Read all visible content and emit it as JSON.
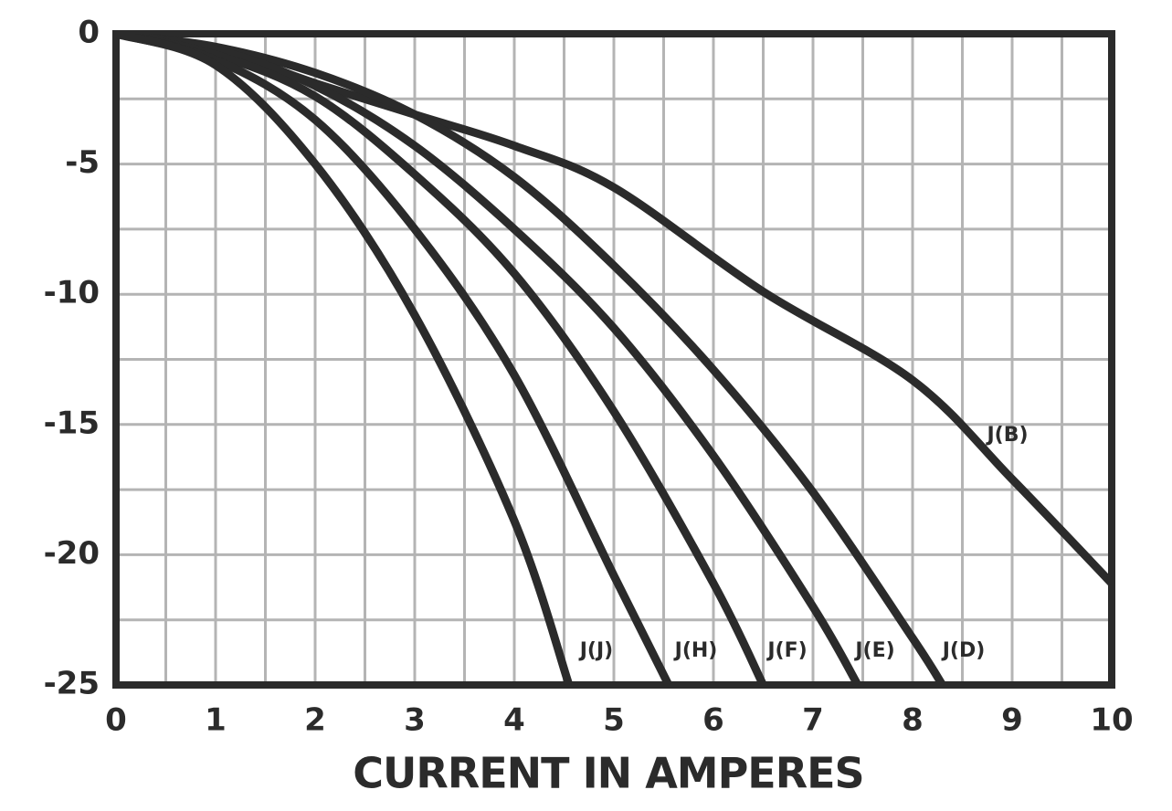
{
  "chart_data": {
    "type": "line",
    "xlabel": "CURRENT IN AMPERES",
    "xlim": [
      0,
      10
    ],
    "xticks": [
      0,
      1,
      2,
      3,
      4,
      5,
      6,
      7,
      8,
      9,
      10
    ],
    "ylim": [
      -25,
      0
    ],
    "yticks": [
      0,
      -5,
      -10,
      -15,
      -20,
      -25
    ],
    "grid": true,
    "series": [
      {
        "name": "J(B)",
        "color": "#2b2b2b",
        "x": [
          0,
          1,
          2,
          3,
          4,
          5,
          6.5,
          8,
          9,
          10
        ],
        "values": [
          0,
          -0.6,
          -1.9,
          -3.1,
          -4.3,
          -5.9,
          -9.9,
          -13.3,
          -17.1,
          -21.1
        ]
      },
      {
        "name": "J(D)",
        "color": "#2b2b2b",
        "x": [
          0,
          1,
          2,
          3,
          4,
          5,
          6,
          7,
          8,
          8.3
        ],
        "values": [
          0,
          -0.5,
          -1.5,
          -3.1,
          -5.5,
          -8.9,
          -12.9,
          -17.6,
          -23.2,
          -25
        ]
      },
      {
        "name": "J(E)",
        "color": "#2b2b2b",
        "x": [
          0,
          1,
          2,
          3,
          4,
          5,
          6,
          7,
          7.45
        ],
        "values": [
          0,
          -0.6,
          -2.0,
          -4.3,
          -7.5,
          -11.3,
          -16.2,
          -22.0,
          -25
        ]
      },
      {
        "name": "J(F)",
        "color": "#2b2b2b",
        "x": [
          0,
          1,
          2,
          3,
          4,
          5,
          6,
          6.5
        ],
        "values": [
          0,
          -0.8,
          -2.4,
          -5.4,
          -9.2,
          -14.5,
          -21.1,
          -25
        ]
      },
      {
        "name": "J(H)",
        "color": "#2b2b2b",
        "x": [
          0,
          1,
          2,
          3,
          4,
          5,
          5.55
        ],
        "values": [
          0,
          -1.0,
          -3.3,
          -7.5,
          -13.1,
          -20.8,
          -25
        ]
      },
      {
        "name": "J(J)",
        "color": "#2b2b2b",
        "x": [
          0,
          1,
          2,
          3,
          4,
          4.55
        ],
        "values": [
          0,
          -1.2,
          -5.0,
          -10.8,
          -18.7,
          -25
        ]
      }
    ]
  }
}
